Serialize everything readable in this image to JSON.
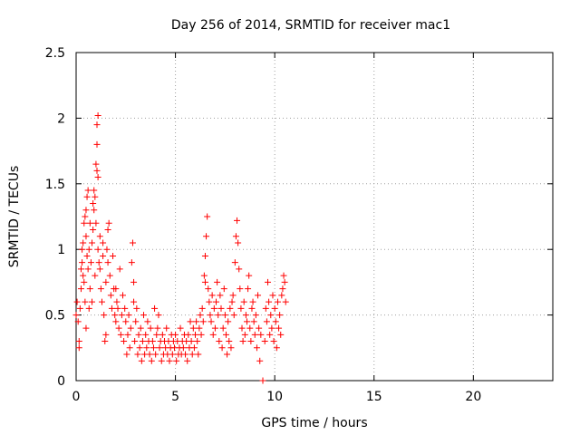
{
  "chart_data": {
    "type": "scatter",
    "title": "Day 256 of 2014, SRMTID for receiver mac1",
    "xlabel": "GPS time / hours",
    "ylabel": "SRMTID / TECUs",
    "xlim": [
      0,
      24
    ],
    "ylim": [
      0,
      2.5
    ],
    "xticks": [
      0,
      5,
      10,
      15,
      20
    ],
    "xtick_labels": [
      "0",
      "5",
      "10",
      "15",
      "20"
    ],
    "yticks": [
      0,
      0.5,
      1,
      1.5,
      2,
      2.5
    ],
    "ytick_labels": [
      "0",
      "0.5",
      "1",
      "1.5",
      "2",
      "2.5"
    ],
    "grid": true,
    "marker": "plus",
    "series_color": "#ff0000",
    "series": [
      {
        "name": "SRMTID",
        "points": [
          [
            0.0,
            0.5
          ],
          [
            0.05,
            0.6
          ],
          [
            0.1,
            0.45
          ],
          [
            0.15,
            0.3
          ],
          [
            0.15,
            0.25
          ],
          [
            0.2,
            0.55
          ],
          [
            0.25,
            0.7
          ],
          [
            0.25,
            0.85
          ],
          [
            0.3,
            0.9
          ],
          [
            0.3,
            1.0
          ],
          [
            0.35,
            0.8
          ],
          [
            0.35,
            1.05
          ],
          [
            0.4,
            1.2
          ],
          [
            0.4,
            0.75
          ],
          [
            0.45,
            0.6
          ],
          [
            0.45,
            1.25
          ],
          [
            0.5,
            1.3
          ],
          [
            0.5,
            1.1
          ],
          [
            0.5,
            0.4
          ],
          [
            0.55,
            0.95
          ],
          [
            0.55,
            1.4
          ],
          [
            0.6,
            1.45
          ],
          [
            0.6,
            0.85
          ],
          [
            0.65,
            0.55
          ],
          [
            0.65,
            1.0
          ],
          [
            0.7,
            1.2
          ],
          [
            0.7,
            0.7
          ],
          [
            0.75,
            0.9
          ],
          [
            0.8,
            1.05
          ],
          [
            0.8,
            0.6
          ],
          [
            0.85,
            1.15
          ],
          [
            0.85,
            1.35
          ],
          [
            0.9,
            1.3
          ],
          [
            0.9,
            1.45
          ],
          [
            0.95,
            1.4
          ],
          [
            0.95,
            0.8
          ],
          [
            1.0,
            1.2
          ],
          [
            1.0,
            1.65
          ],
          [
            1.05,
            1.8
          ],
          [
            1.05,
            1.6
          ],
          [
            1.05,
            1.95
          ],
          [
            1.1,
            2.02
          ],
          [
            1.1,
            1.55
          ],
          [
            1.1,
            1.0
          ],
          [
            1.15,
            0.9
          ],
          [
            1.2,
            0.85
          ],
          [
            1.2,
            1.1
          ],
          [
            1.25,
            0.7
          ],
          [
            1.3,
            0.6
          ],
          [
            1.35,
            0.95
          ],
          [
            1.35,
            1.05
          ],
          [
            1.4,
            0.5
          ],
          [
            1.45,
            0.3
          ],
          [
            1.5,
            0.75
          ],
          [
            1.5,
            0.35
          ],
          [
            1.55,
            1.0
          ],
          [
            1.6,
            1.15
          ],
          [
            1.6,
            0.9
          ],
          [
            1.65,
            1.2
          ],
          [
            1.7,
            0.8
          ],
          [
            1.75,
            0.65
          ],
          [
            1.8,
            0.55
          ],
          [
            1.85,
            0.95
          ],
          [
            1.9,
            0.7
          ],
          [
            1.95,
            0.5
          ],
          [
            2.0,
            0.45
          ],
          [
            2.0,
            0.7
          ],
          [
            2.05,
            0.6
          ],
          [
            2.1,
            0.55
          ],
          [
            2.15,
            0.4
          ],
          [
            2.2,
            0.85
          ],
          [
            2.25,
            0.35
          ],
          [
            2.3,
            0.5
          ],
          [
            2.35,
            0.65
          ],
          [
            2.4,
            0.3
          ],
          [
            2.45,
            0.55
          ],
          [
            2.5,
            0.45
          ],
          [
            2.55,
            0.2
          ],
          [
            2.6,
            0.35
          ],
          [
            2.65,
            0.5
          ],
          [
            2.7,
            0.25
          ],
          [
            2.75,
            0.4
          ],
          [
            2.8,
            0.9
          ],
          [
            2.85,
            1.05
          ],
          [
            2.9,
            0.75
          ],
          [
            2.9,
            0.6
          ],
          [
            2.95,
            0.3
          ],
          [
            3.0,
            0.45
          ],
          [
            3.05,
            0.55
          ],
          [
            3.1,
            0.2
          ],
          [
            3.15,
            0.35
          ],
          [
            3.2,
            0.25
          ],
          [
            3.25,
            0.4
          ],
          [
            3.3,
            0.15
          ],
          [
            3.35,
            0.3
          ],
          [
            3.4,
            0.5
          ],
          [
            3.45,
            0.2
          ],
          [
            3.5,
            0.35
          ],
          [
            3.55,
            0.25
          ],
          [
            3.6,
            0.45
          ],
          [
            3.65,
            0.3
          ],
          [
            3.7,
            0.2
          ],
          [
            3.75,
            0.4
          ],
          [
            3.8,
            0.15
          ],
          [
            3.85,
            0.3
          ],
          [
            3.9,
            0.25
          ],
          [
            3.95,
            0.55
          ],
          [
            4.0,
            0.2
          ],
          [
            4.05,
            0.35
          ],
          [
            4.1,
            0.4
          ],
          [
            4.15,
            0.5
          ],
          [
            4.2,
            0.25
          ],
          [
            4.25,
            0.3
          ],
          [
            4.3,
            0.15
          ],
          [
            4.35,
            0.35
          ],
          [
            4.4,
            0.2
          ],
          [
            4.45,
            0.3
          ],
          [
            4.5,
            0.25
          ],
          [
            4.55,
            0.4
          ],
          [
            4.6,
            0.2
          ],
          [
            4.65,
            0.3
          ],
          [
            4.7,
            0.15
          ],
          [
            4.75,
            0.25
          ],
          [
            4.8,
            0.35
          ],
          [
            4.85,
            0.2
          ],
          [
            4.9,
            0.3
          ],
          [
            4.95,
            0.25
          ],
          [
            5.0,
            0.35
          ],
          [
            5.05,
            0.15
          ],
          [
            5.1,
            0.3
          ],
          [
            5.15,
            0.2
          ],
          [
            5.2,
            0.25
          ],
          [
            5.25,
            0.4
          ],
          [
            5.3,
            0.2
          ],
          [
            5.35,
            0.3
          ],
          [
            5.4,
            0.25
          ],
          [
            5.45,
            0.35
          ],
          [
            5.5,
            0.2
          ],
          [
            5.55,
            0.3
          ],
          [
            5.6,
            0.15
          ],
          [
            5.65,
            0.35
          ],
          [
            5.7,
            0.25
          ],
          [
            5.75,
            0.45
          ],
          [
            5.8,
            0.3
          ],
          [
            5.85,
            0.2
          ],
          [
            5.9,
            0.4
          ],
          [
            5.95,
            0.25
          ],
          [
            6.0,
            0.35
          ],
          [
            6.05,
            0.45
          ],
          [
            6.1,
            0.3
          ],
          [
            6.15,
            0.2
          ],
          [
            6.2,
            0.4
          ],
          [
            6.25,
            0.5
          ],
          [
            6.3,
            0.35
          ],
          [
            6.35,
            0.55
          ],
          [
            6.4,
            0.45
          ],
          [
            6.45,
            0.8
          ],
          [
            6.5,
            0.95
          ],
          [
            6.5,
            0.75
          ],
          [
            6.55,
            1.1
          ],
          [
            6.6,
            1.25
          ],
          [
            6.65,
            0.7
          ],
          [
            6.7,
            0.6
          ],
          [
            6.75,
            0.5
          ],
          [
            6.8,
            0.45
          ],
          [
            6.85,
            0.65
          ],
          [
            6.9,
            0.35
          ],
          [
            6.95,
            0.55
          ],
          [
            7.0,
            0.4
          ],
          [
            7.05,
            0.6
          ],
          [
            7.1,
            0.75
          ],
          [
            7.15,
            0.5
          ],
          [
            7.2,
            0.3
          ],
          [
            7.25,
            0.65
          ],
          [
            7.3,
            0.55
          ],
          [
            7.35,
            0.25
          ],
          [
            7.4,
            0.4
          ],
          [
            7.45,
            0.7
          ],
          [
            7.5,
            0.5
          ],
          [
            7.55,
            0.35
          ],
          [
            7.6,
            0.2
          ],
          [
            7.65,
            0.45
          ],
          [
            7.7,
            0.3
          ],
          [
            7.75,
            0.55
          ],
          [
            7.8,
            0.25
          ],
          [
            7.85,
            0.6
          ],
          [
            7.9,
            0.65
          ],
          [
            7.95,
            0.5
          ],
          [
            8.0,
            0.9
          ],
          [
            8.05,
            1.1
          ],
          [
            8.1,
            1.22
          ],
          [
            8.15,
            1.05
          ],
          [
            8.2,
            0.85
          ],
          [
            8.25,
            0.7
          ],
          [
            8.3,
            0.55
          ],
          [
            8.35,
            0.4
          ],
          [
            8.4,
            0.3
          ],
          [
            8.45,
            0.6
          ],
          [
            8.5,
            0.35
          ],
          [
            8.55,
            0.5
          ],
          [
            8.6,
            0.45
          ],
          [
            8.65,
            0.7
          ],
          [
            8.7,
            0.8
          ],
          [
            8.75,
            0.4
          ],
          [
            8.8,
            0.3
          ],
          [
            8.85,
            0.55
          ],
          [
            8.9,
            0.6
          ],
          [
            8.95,
            0.45
          ],
          [
            9.0,
            0.35
          ],
          [
            9.05,
            0.5
          ],
          [
            9.1,
            0.25
          ],
          [
            9.15,
            0.65
          ],
          [
            9.2,
            0.4
          ],
          [
            9.25,
            0.15
          ],
          [
            9.3,
            0.35
          ],
          [
            9.4,
            0.0
          ],
          [
            9.5,
            0.3
          ],
          [
            9.55,
            0.55
          ],
          [
            9.6,
            0.45
          ],
          [
            9.65,
            0.75
          ],
          [
            9.7,
            0.6
          ],
          [
            9.75,
            0.35
          ],
          [
            9.8,
            0.5
          ],
          [
            9.85,
            0.4
          ],
          [
            9.9,
            0.65
          ],
          [
            9.95,
            0.3
          ],
          [
            10.0,
            0.55
          ],
          [
            10.05,
            0.45
          ],
          [
            10.1,
            0.25
          ],
          [
            10.15,
            0.6
          ],
          [
            10.2,
            0.4
          ],
          [
            10.25,
            0.5
          ],
          [
            10.3,
            0.35
          ],
          [
            10.35,
            0.65
          ],
          [
            10.4,
            0.7
          ],
          [
            10.45,
            0.8
          ],
          [
            10.5,
            0.75
          ],
          [
            10.55,
            0.6
          ]
        ]
      }
    ]
  }
}
